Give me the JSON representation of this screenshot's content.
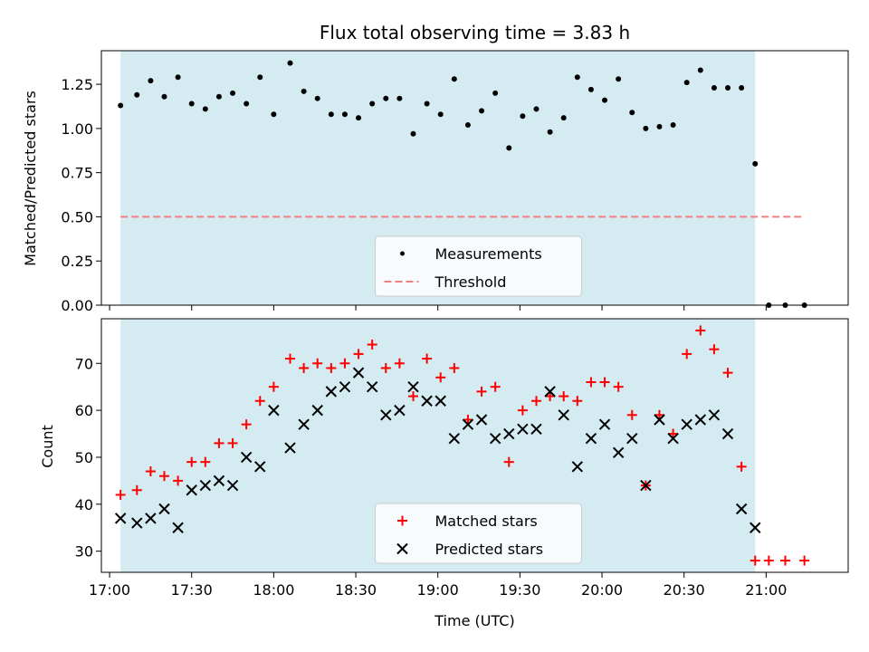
{
  "chart_data": [
    {
      "type": "scatter",
      "title": "Flux total observing time = 3.83 h",
      "xlabel": "",
      "ylabel": "Matched/Predicted stars",
      "xlim": [
        "16:57",
        "21:30"
      ],
      "ylim": [
        0,
        1.44
      ],
      "yticks": [
        "0.00",
        "0.25",
        "0.50",
        "0.75",
        "1.00",
        "1.25"
      ],
      "grid": false,
      "legend_placement": "lower-center",
      "shaded_span": [
        "17:04",
        "20:56"
      ],
      "shade_color": "#d4ebf2",
      "series": [
        {
          "name": "Measurements",
          "marker": "dot",
          "color": "#000000",
          "x": [
            "17:04",
            "17:10",
            "17:15",
            "17:20",
            "17:25",
            "17:30",
            "17:35",
            "17:40",
            "17:45",
            "17:50",
            "17:55",
            "18:00",
            "18:06",
            "18:11",
            "18:16",
            "18:21",
            "18:26",
            "18:31",
            "18:36",
            "18:41",
            "18:46",
            "18:51",
            "18:56",
            "19:01",
            "19:06",
            "19:11",
            "19:16",
            "19:21",
            "19:26",
            "19:31",
            "19:36",
            "19:41",
            "19:46",
            "19:51",
            "19:56",
            "20:01",
            "20:06",
            "20:11",
            "20:16",
            "20:21",
            "20:26",
            "20:31",
            "20:36",
            "20:41",
            "20:46",
            "20:51",
            "20:56",
            "21:01",
            "21:07",
            "21:14"
          ],
          "y": [
            1.13,
            1.19,
            1.27,
            1.18,
            1.29,
            1.14,
            1.11,
            1.18,
            1.2,
            1.14,
            1.29,
            1.08,
            1.37,
            1.21,
            1.17,
            1.08,
            1.08,
            1.06,
            1.14,
            1.17,
            1.17,
            0.97,
            1.14,
            1.08,
            1.28,
            1.02,
            1.1,
            1.2,
            0.89,
            1.07,
            1.11,
            0.98,
            1.06,
            1.29,
            1.22,
            1.16,
            1.28,
            1.09,
            1.0,
            1.01,
            1.02,
            1.26,
            1.33,
            1.23,
            1.23,
            1.23,
            0.8,
            0.0,
            0.0,
            0.0
          ]
        },
        {
          "name": "Threshold",
          "marker": "dashed-line",
          "color": "#f08080",
          "x": [
            "17:04",
            "21:14"
          ],
          "y": [
            0.5,
            0.5
          ]
        }
      ]
    },
    {
      "type": "scatter",
      "title": "",
      "xlabel": "Time (UTC)",
      "ylabel": "Count",
      "xlim": [
        "16:57",
        "21:30"
      ],
      "ylim": [
        25.5,
        79.5
      ],
      "xticks": [
        "17:00",
        "17:30",
        "18:00",
        "18:30",
        "19:00",
        "19:30",
        "20:00",
        "20:30",
        "21:00"
      ],
      "yticks": [
        "30",
        "40",
        "50",
        "60",
        "70"
      ],
      "grid": false,
      "legend_placement": "lower-center",
      "shaded_span": [
        "17:04",
        "20:56"
      ],
      "shade_color": "#d4ebf2",
      "series": [
        {
          "name": "Matched stars",
          "marker": "plus",
          "color": "#ff0000",
          "x": [
            "17:04",
            "17:10",
            "17:15",
            "17:20",
            "17:25",
            "17:30",
            "17:35",
            "17:40",
            "17:45",
            "17:50",
            "17:55",
            "18:00",
            "18:06",
            "18:11",
            "18:16",
            "18:21",
            "18:26",
            "18:31",
            "18:36",
            "18:41",
            "18:46",
            "18:51",
            "18:56",
            "19:01",
            "19:06",
            "19:11",
            "19:16",
            "19:21",
            "19:26",
            "19:31",
            "19:36",
            "19:41",
            "19:46",
            "19:51",
            "19:56",
            "20:01",
            "20:06",
            "20:11",
            "20:16",
            "20:21",
            "20:26",
            "20:31",
            "20:36",
            "20:41",
            "20:46",
            "20:51",
            "20:56",
            "21:01",
            "21:07",
            "21:14"
          ],
          "y": [
            42,
            43,
            47,
            46,
            45,
            49,
            49,
            53,
            53,
            57,
            62,
            65,
            71,
            69,
            70,
            69,
            70,
            72,
            74,
            69,
            70,
            63,
            71,
            67,
            69,
            58,
            64,
            65,
            49,
            60,
            62,
            63,
            63,
            62,
            66,
            66,
            65,
            59,
            44,
            59,
            55,
            72,
            77,
            73,
            68,
            48,
            28,
            28,
            28,
            28
          ]
        },
        {
          "name": "Predicted stars",
          "marker": "x",
          "color": "#000000",
          "x": [
            "17:04",
            "17:10",
            "17:15",
            "17:20",
            "17:25",
            "17:30",
            "17:35",
            "17:40",
            "17:45",
            "17:50",
            "17:55",
            "18:00",
            "18:06",
            "18:11",
            "18:16",
            "18:21",
            "18:26",
            "18:31",
            "18:36",
            "18:41",
            "18:46",
            "18:51",
            "18:56",
            "19:01",
            "19:06",
            "19:11",
            "19:16",
            "19:21",
            "19:26",
            "19:31",
            "19:36",
            "19:41",
            "19:46",
            "19:51",
            "19:56",
            "20:01",
            "20:06",
            "20:11",
            "20:16",
            "20:21",
            "20:26",
            "20:31",
            "20:36",
            "20:41",
            "20:46",
            "20:51",
            "20:56"
          ],
          "y": [
            37,
            36,
            37,
            39,
            35,
            43,
            44,
            45,
            44,
            50,
            48,
            60,
            52,
            57,
            60,
            64,
            65,
            68,
            65,
            59,
            60,
            65,
            62,
            62,
            54,
            57,
            58,
            54,
            55,
            56,
            56,
            64,
            59,
            48,
            54,
            57,
            51,
            54,
            44,
            58,
            54,
            57,
            58,
            59,
            55,
            39,
            35
          ]
        }
      ]
    }
  ]
}
